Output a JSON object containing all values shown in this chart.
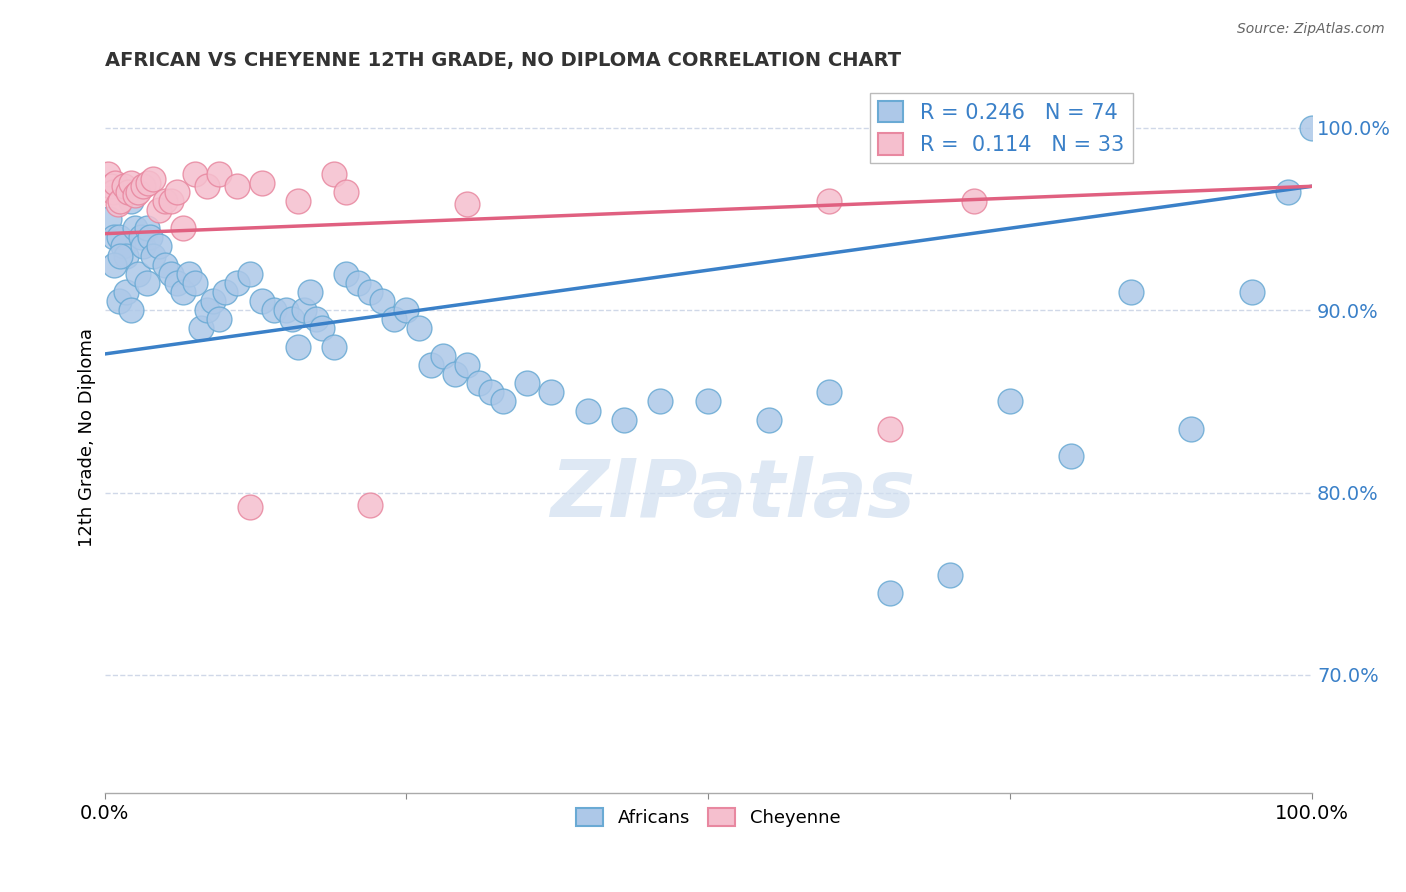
{
  "title": "AFRICAN VS CHEYENNE 12TH GRADE, NO DIPLOMA CORRELATION CHART",
  "source": "Source: ZipAtlas.com",
  "ylabel": "12th Grade, No Diploma",
  "xlim": [
    0.0,
    1.0
  ],
  "ylim": [
    0.635,
    1.025
  ],
  "yticks": [
    0.7,
    0.8,
    0.9,
    1.0
  ],
  "ytick_labels": [
    "70.0%",
    "80.0%",
    "90.0%",
    "100.0%"
  ],
  "xtick_labels": [
    "0.0%",
    "100.0%"
  ],
  "xtick_pos": [
    0.0,
    1.0
  ],
  "african_R": 0.246,
  "african_N": 74,
  "cheyenne_R": 0.114,
  "cheyenne_N": 33,
  "african_color": "#adc8e8",
  "african_edge_color": "#6aaad4",
  "african_line_color": "#3a80c8",
  "cheyenne_color": "#f5bfce",
  "cheyenne_edge_color": "#e888a0",
  "cheyenne_line_color": "#e06080",
  "watermark_color": "#d0dff0",
  "grid_color": "#d0d8e8",
  "african_line_x0": 0.0,
  "african_line_y0": 0.876,
  "african_line_x1": 1.0,
  "african_line_y1": 0.968,
  "cheyenne_line_x0": 0.0,
  "cheyenne_line_y0": 0.942,
  "cheyenne_line_x1": 1.0,
  "cheyenne_line_y1": 0.968,
  "african_x": [
    0.004,
    0.008,
    0.012,
    0.015,
    0.018,
    0.022,
    0.008,
    0.013,
    0.025,
    0.03,
    0.032,
    0.035,
    0.038,
    0.012,
    0.018,
    0.022,
    0.028,
    0.035,
    0.04,
    0.045,
    0.05,
    0.055,
    0.06,
    0.065,
    0.07,
    0.075,
    0.08,
    0.085,
    0.09,
    0.095,
    0.1,
    0.11,
    0.12,
    0.13,
    0.14,
    0.15,
    0.155,
    0.16,
    0.165,
    0.17,
    0.175,
    0.18,
    0.19,
    0.2,
    0.21,
    0.22,
    0.23,
    0.24,
    0.25,
    0.26,
    0.27,
    0.28,
    0.29,
    0.3,
    0.31,
    0.32,
    0.33,
    0.35,
    0.37,
    0.4,
    0.43,
    0.46,
    0.5,
    0.55,
    0.6,
    0.65,
    0.7,
    0.75,
    0.8,
    0.85,
    0.9,
    0.95,
    0.98,
    1.0
  ],
  "african_y": [
    0.95,
    0.94,
    0.94,
    0.935,
    0.93,
    0.96,
    0.925,
    0.93,
    0.945,
    0.94,
    0.935,
    0.945,
    0.94,
    0.905,
    0.91,
    0.9,
    0.92,
    0.915,
    0.93,
    0.935,
    0.925,
    0.92,
    0.915,
    0.91,
    0.92,
    0.915,
    0.89,
    0.9,
    0.905,
    0.895,
    0.91,
    0.915,
    0.92,
    0.905,
    0.9,
    0.9,
    0.895,
    0.88,
    0.9,
    0.91,
    0.895,
    0.89,
    0.88,
    0.92,
    0.915,
    0.91,
    0.905,
    0.895,
    0.9,
    0.89,
    0.87,
    0.875,
    0.865,
    0.87,
    0.86,
    0.855,
    0.85,
    0.86,
    0.855,
    0.845,
    0.84,
    0.85,
    0.85,
    0.84,
    0.855,
    0.745,
    0.755,
    0.85,
    0.82,
    0.91,
    0.835,
    0.91,
    0.965,
    1.0
  ],
  "cheyenne_x": [
    0.003,
    0.005,
    0.007,
    0.009,
    0.011,
    0.013,
    0.016,
    0.019,
    0.022,
    0.025,
    0.028,
    0.032,
    0.036,
    0.04,
    0.045,
    0.05,
    0.055,
    0.06,
    0.065,
    0.075,
    0.085,
    0.095,
    0.11,
    0.13,
    0.16,
    0.19,
    0.22,
    0.3,
    0.6,
    0.65,
    0.72,
    0.12,
    0.2
  ],
  "cheyenne_y": [
    0.975,
    0.968,
    0.965,
    0.97,
    0.958,
    0.96,
    0.968,
    0.965,
    0.97,
    0.963,
    0.965,
    0.968,
    0.97,
    0.972,
    0.955,
    0.96,
    0.96,
    0.965,
    0.945,
    0.975,
    0.968,
    0.975,
    0.968,
    0.97,
    0.96,
    0.975,
    0.793,
    0.958,
    0.96,
    0.835,
    0.96,
    0.792,
    0.965
  ]
}
